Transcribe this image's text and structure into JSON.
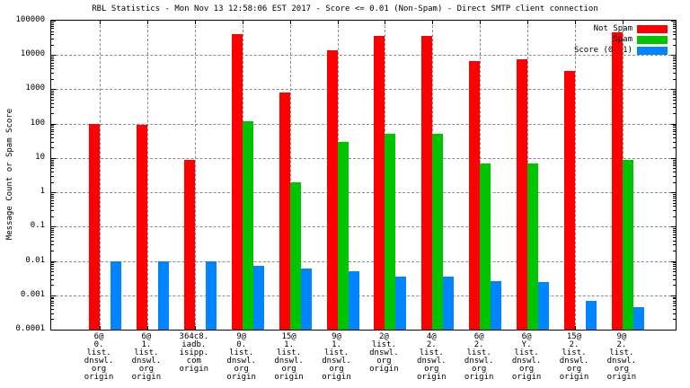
{
  "title": "RBL Statistics - Mon Nov 13 12:58:06 EST 2017 - Score <= 0.01 (Non-Spam) - Direct SMTP client connection",
  "chart_data": {
    "type": "bar",
    "title": "RBL Statistics - Mon Nov 13 12:58:06 EST 2017 - Score <= 0.01 (Non-Spam) - Direct SMTP client connection",
    "ylabel": "Message Count or Spam Score",
    "xlabel": "",
    "yscale": "log",
    "ylim": [
      0.0001,
      100000
    ],
    "yticks": [
      "100000",
      "10000",
      "1000",
      "100",
      "10",
      "1",
      "0.1",
      "0.01",
      "0.001",
      "0.0001"
    ],
    "grid": true,
    "legend_position": "top-right",
    "categories": [
      [
        "6@",
        "0.",
        "list.",
        "dnswl.",
        "org",
        "origin"
      ],
      [
        "6@",
        "1.",
        "list.",
        "dnswl.",
        "org",
        "origin"
      ],
      [
        "364c8.",
        "iadb.",
        "isipp.",
        "com",
        "origin"
      ],
      [
        "9@",
        "0.",
        "list.",
        "dnswl.",
        "org",
        "origin"
      ],
      [
        "15@",
        "1.",
        "list.",
        "dnswl.",
        "org",
        "origin"
      ],
      [
        "9@",
        "1.",
        "list.",
        "dnswl.",
        "org",
        "origin"
      ],
      [
        "2@",
        "list.",
        "dnswl.",
        "org",
        "origin"
      ],
      [
        "4@",
        "2.",
        "list.",
        "dnswl.",
        "org",
        "origin"
      ],
      [
        "6@",
        "2.",
        "list.",
        "dnswl.",
        "org",
        "origin"
      ],
      [
        "6@",
        "Y.",
        "list.",
        "dnswl.",
        "org",
        "origin"
      ],
      [
        "15@",
        "2.",
        "list.",
        "dnswl.",
        "org",
        "origin"
      ],
      [
        "9@",
        "2.",
        "list.",
        "dnswl.",
        "org",
        "origin"
      ]
    ],
    "series": [
      {
        "name": "Not Spam",
        "color": "#ff0000",
        "values": [
          100,
          90,
          9,
          40000,
          800,
          14000,
          35000,
          35000,
          6500,
          7500,
          3500,
          45000
        ]
      },
      {
        "name": "Spam",
        "color": "#00c400",
        "values": [
          null,
          null,
          null,
          120,
          2,
          30,
          50,
          50,
          7,
          7,
          null,
          9
        ]
      },
      {
        "name": "Score (0..1)",
        "color": "#0084ff",
        "values": [
          0.01,
          0.01,
          0.01,
          0.007,
          0.006,
          0.005,
          0.0035,
          0.0035,
          0.0026,
          0.0024,
          0.0007,
          0.00045
        ]
      }
    ]
  }
}
